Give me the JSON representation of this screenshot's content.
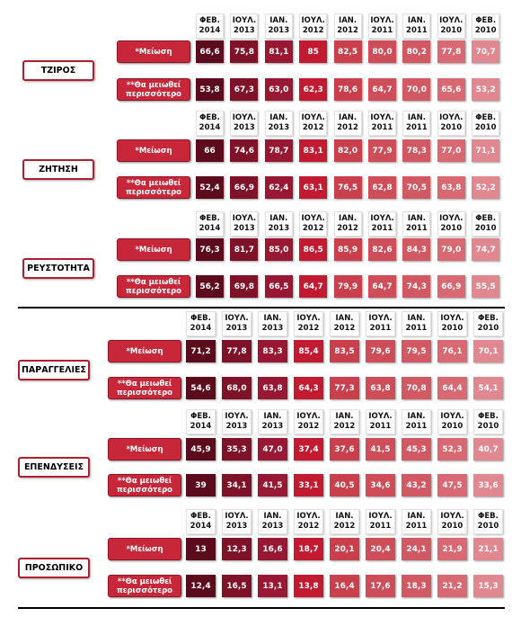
{
  "sections": [
    {
      "label": "ΤΖΙΡΟΣ",
      "columns": [
        [
          "ΦΕΒ.",
          "2014"
        ],
        [
          "ΙΟΥΛ.",
          "2013"
        ],
        [
          "ΙΑΝ.",
          "2013"
        ],
        [
          "ΙΟΥΛ.",
          "2012"
        ],
        [
          "ΙΑΝ.",
          "2012"
        ],
        [
          "ΙΟΥΛ.",
          "2011"
        ],
        [
          "ΙΑΝ.",
          "2011"
        ],
        [
          "ΙΟΥΛ.",
          "2010"
        ],
        [
          "ΦΕΒ.",
          "2010"
        ]
      ],
      "rows": [
        {
          "label": [
            "*Μείωση"
          ],
          "values": [
            "66,6",
            "75,8",
            "81,1",
            "85",
            "82,5",
            "80,0",
            "80,2",
            "77,8",
            "70,7"
          ]
        },
        {
          "label": [
            "**Θα μειωθεί",
            "περισσότερο"
          ],
          "values": [
            "53,8",
            "67,3",
            "63,0",
            "62,3",
            "78,6",
            "64,7",
            "70,0",
            "65,6",
            "53,2"
          ]
        }
      ]
    },
    {
      "label": "ΖΗΤΗΣΗ",
      "columns": [
        [
          "ΦΕΒ.",
          "2014"
        ],
        [
          "ΙΟΥΛ.",
          "2013"
        ],
        [
          "ΙΑΝ.",
          "2013"
        ],
        [
          "ΙΟΥΛ.",
          "2012"
        ],
        [
          "ΙΑΝ.",
          "2012"
        ],
        [
          "ΙΟΥΛ.",
          "2011"
        ],
        [
          "ΙΑΝ.",
          "2011"
        ],
        [
          "ΙΟΥΛ.",
          "2010"
        ],
        [
          "ΦΕΒ.",
          "2010"
        ]
      ],
      "rows": [
        {
          "label": [
            "*Μείωση"
          ],
          "values": [
            "66",
            "74,6",
            "78,7",
            "83,1",
            "82,0",
            "77,9",
            "78,3",
            "77,0",
            "71,1"
          ]
        },
        {
          "label": [
            "**Θα μειωθεί",
            "περισσότερο"
          ],
          "values": [
            "52,4",
            "66,9",
            "62,4",
            "63,1",
            "76,5",
            "62,8",
            "70,5",
            "63,8",
            "52,2"
          ]
        }
      ]
    },
    {
      "label": "ΡΕΥΣΤΟΤΗΤΑ",
      "columns": [
        [
          "ΦΕΒ.",
          "2014"
        ],
        [
          "ΙΟΥΛ.",
          "2013"
        ],
        [
          "ΙΑΝ.",
          "2013"
        ],
        [
          "ΙΟΥΛ.",
          "2012"
        ],
        [
          "ΙΑΝ.",
          "2012"
        ],
        [
          "ΙΟΥΛ.",
          "2011"
        ],
        [
          "ΙΑΝ.",
          "2011"
        ],
        [
          "ΙΟΥΛ.",
          "2010"
        ],
        [
          "ΦΕΒ.",
          "2010"
        ]
      ],
      "rows": [
        {
          "label": [
            "*Μείωση"
          ],
          "values": [
            "76,3",
            "81,7",
            "85,0",
            "86,5",
            "85,9",
            "82,6",
            "84,3",
            "79,0",
            "74,7"
          ]
        },
        {
          "label": [
            "**Θα μειωθεί",
            "περισσότερο"
          ],
          "values": [
            "56,2",
            "69,8",
            "66,5",
            "64,7",
            "79,9",
            "64,7",
            "74,3",
            "66,9",
            "55,5"
          ]
        }
      ]
    },
    {
      "label": "ΠΑΡΑΓΓΕΛΙΕΣ",
      "columns": [
        [
          "ΦΕΒ.",
          "2014"
        ],
        [
          "ΙΟΥΛ.",
          "2013"
        ],
        [
          "ΙΑΝ.",
          "2013"
        ],
        [
          "ΙΟΥΛ.",
          "2012"
        ],
        [
          "ΙΑΝ.",
          "2012"
        ],
        [
          "ΙΟΥΛ.",
          "2011"
        ],
        [
          "ΙΑΝ.",
          "2011"
        ],
        [
          "ΙΟΥΛ.",
          "2010"
        ],
        [
          "ΦΕΒ.",
          "2010"
        ]
      ],
      "rows": [
        {
          "label": [
            "*Μείωση"
          ],
          "values": [
            "71,2",
            "77,8",
            "83,3",
            "85,4",
            "83,5",
            "79,6",
            "79,5",
            "76,1",
            "70,1"
          ]
        },
        {
          "label": [
            "**Θα μειωθεί",
            "περισσότερο"
          ],
          "values": [
            "54,6",
            "68,0",
            "63,8",
            "64,3",
            "77,3",
            "63,8",
            "70,8",
            "64,4",
            "54,1"
          ]
        }
      ]
    },
    {
      "label": "ΕΠΕΝΔΥΣΕΙΣ",
      "columns": [
        [
          "ΦΕΒ.",
          "2014"
        ],
        [
          "ΙΟΥΛ.",
          "2013"
        ],
        [
          "ΙΑΝ.",
          "2013"
        ],
        [
          "ΙΟΥΛ.",
          "2012"
        ],
        [
          "ΙΑΝ.",
          "2012"
        ],
        [
          "ΙΟΥΛ.",
          "2011"
        ],
        [
          "ΙΑΝ.",
          "2011"
        ],
        [
          "ΙΟΥΛ.",
          "2010"
        ],
        [
          "ΦΕΒ.",
          "2010"
        ]
      ],
      "rows": [
        {
          "label": [
            "*Μείωση"
          ],
          "values": [
            "45,9",
            "35,3",
            "47,0",
            "37,4",
            "37,6",
            "41,5",
            "45,3",
            "52,3",
            "40,7"
          ]
        },
        {
          "label": [
            "**Θα μειωθεί",
            "περισσότερο"
          ],
          "values": [
            "39",
            "34,1",
            "41,5",
            "33,1",
            "40,5",
            "34,6",
            "43,2",
            "47,5",
            "33,6"
          ]
        }
      ]
    },
    {
      "label": "ΠΡΟΣΩΠΙΚΟ",
      "columns": [
        [
          "ΦΕΒ.",
          "2014"
        ],
        [
          "ΙΟΥΛ.",
          "2013"
        ],
        [
          "ΙΑΝ.",
          "2013"
        ],
        [
          "ΙΟΥΛ.",
          "2012"
        ],
        [
          "ΙΑΝ.",
          "2012"
        ],
        [
          "ΙΟΥΛ.",
          "2011"
        ],
        [
          "ΙΑΝ.",
          "2011"
        ],
        [
          "ΙΟΥΛ.",
          "2010"
        ],
        [
          "ΦΕΒ.",
          "2010"
        ]
      ],
      "rows": [
        {
          "label": [
            "*Μείωση"
          ],
          "values": [
            "13",
            "12,3",
            "16,6",
            "18,7",
            "20,1",
            "20,4",
            "24,1",
            "21,9",
            "21,1"
          ]
        },
        {
          "label": [
            "**Θα μειωθεί",
            "περισσότερο"
          ],
          "values": [
            "12,4",
            "16,5",
            "13,1",
            "13,8",
            "16,4",
            "17,6",
            "18,3",
            "21,2",
            "15,3"
          ]
        }
      ]
    }
  ]
}
